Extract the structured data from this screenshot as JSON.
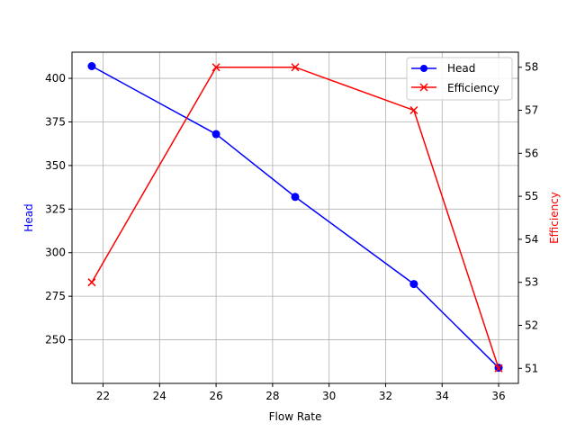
{
  "chart_data": {
    "type": "line",
    "title": "",
    "xlabel": "Flow Rate",
    "ylabel": "Head",
    "y2label": "Efficiency",
    "x": [
      21.6,
      26.0,
      28.8,
      33.0,
      36.0
    ],
    "series": [
      {
        "name": "Head",
        "axis": "left",
        "color": "#0000ff",
        "marker": "o",
        "values": [
          407,
          368,
          332,
          282,
          234
        ]
      },
      {
        "name": "Efficiency",
        "axis": "right",
        "color": "#ff0000",
        "marker": "x",
        "values": [
          53,
          58,
          58,
          57,
          51
        ]
      }
    ],
    "xlim": [
      20.9,
      36.7
    ],
    "ylim": [
      225,
      415
    ],
    "y2lim": [
      50.65,
      58.35
    ],
    "xticks": [
      22,
      24,
      26,
      28,
      30,
      32,
      34,
      36
    ],
    "yticks": [
      250,
      275,
      300,
      325,
      350,
      375,
      400
    ],
    "y2ticks": [
      51,
      52,
      53,
      54,
      55,
      56,
      57,
      58
    ],
    "grid": true,
    "legend_position": "upper right"
  },
  "labels": {
    "xlabel": "Flow Rate",
    "ylabel": "Head",
    "y2label": "Efficiency",
    "legend_head": "Head",
    "legend_efficiency": "Efficiency"
  }
}
